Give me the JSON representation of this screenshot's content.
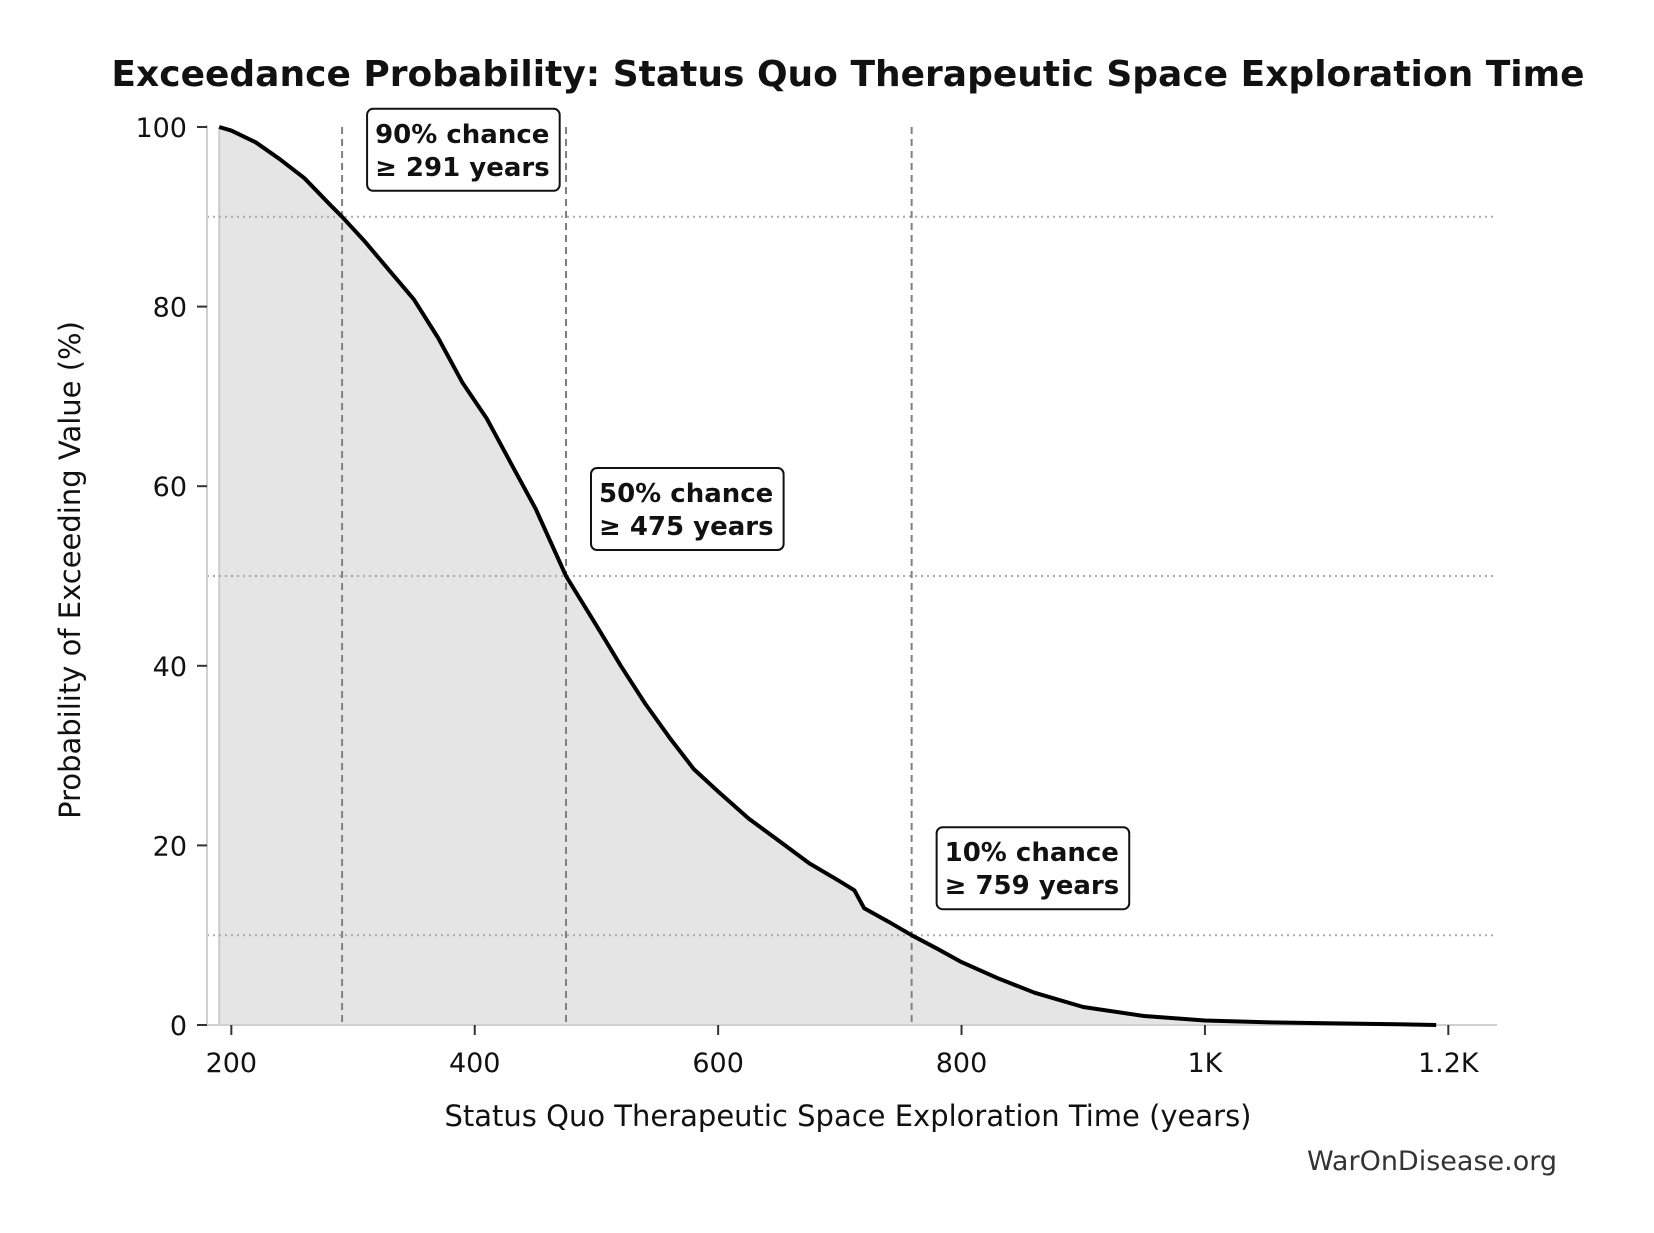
{
  "chart_data": {
    "type": "area",
    "title": "Exceedance Probability: Status Quo Therapeutic Space Exploration Time",
    "xlabel": "Status Quo Therapeutic Space Exploration Time (years)",
    "ylabel": "Probability of Exceeding Value (%)",
    "xlim": [
      180,
      1240
    ],
    "ylim": [
      0,
      100
    ],
    "x_ticks": [
      {
        "value": 200,
        "label": "200"
      },
      {
        "value": 400,
        "label": "400"
      },
      {
        "value": 600,
        "label": "600"
      },
      {
        "value": 800,
        "label": "800"
      },
      {
        "value": 1000,
        "label": "1K"
      },
      {
        "value": 1200,
        "label": "1.2K"
      }
    ],
    "y_ticks": [
      {
        "value": 0,
        "label": "0"
      },
      {
        "value": 20,
        "label": "20"
      },
      {
        "value": 40,
        "label": "40"
      },
      {
        "value": 60,
        "label": "60"
      },
      {
        "value": 80,
        "label": "80"
      },
      {
        "value": 100,
        "label": "100"
      }
    ],
    "series": [
      {
        "x": [
          190,
          200,
          220,
          240,
          260,
          280,
          291,
          310,
          330,
          350,
          370,
          390,
          410,
          430,
          450,
          475,
          500,
          520,
          540,
          560,
          580,
          600,
          625,
          650,
          675,
          700,
          712,
          720,
          740,
          759,
          780,
          800,
          830,
          860,
          900,
          950,
          1000,
          1050,
          1100,
          1150,
          1190
        ],
        "y": [
          100,
          99.6,
          98.3,
          96.4,
          94.3,
          91.5,
          90,
          87.2,
          84,
          80.8,
          76.5,
          71.5,
          67.5,
          62.5,
          57.5,
          50,
          44.5,
          40,
          35.8,
          32,
          28.5,
          26,
          23,
          20.5,
          18,
          16,
          15,
          13,
          11.5,
          10,
          8.5,
          7,
          5.2,
          3.6,
          2,
          1,
          0.5,
          0.3,
          0.2,
          0.1,
          0
        ]
      }
    ],
    "reference_lines": {
      "vertical": [
        291,
        475,
        759
      ],
      "horizontal": [
        90,
        50,
        10
      ]
    },
    "annotations": [
      {
        "x": 291,
        "y": 90,
        "line1": "90% chance",
        "line2": "≥ 291 years"
      },
      {
        "x": 475,
        "y": 50,
        "line1": "50% chance",
        "line2": "≥ 475 years"
      },
      {
        "x": 759,
        "y": 10,
        "line1": "10% chance",
        "line2": "≥ 759 years"
      }
    ],
    "credit": "WarOnDisease.org",
    "colors": {
      "line": "#000000",
      "fill": "#e5e5e5",
      "ref_vertical": "#808080",
      "ref_horizontal": "#aaaaaa"
    }
  }
}
